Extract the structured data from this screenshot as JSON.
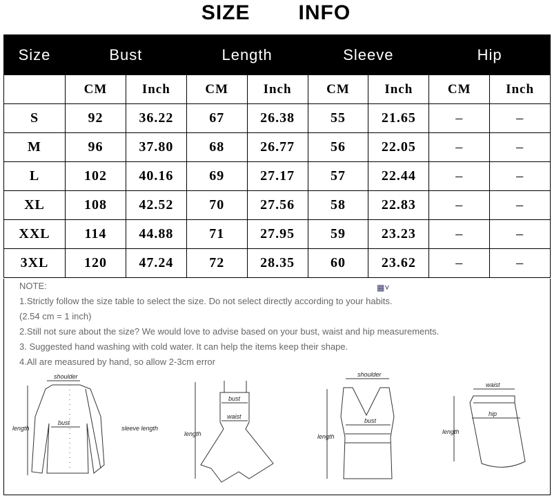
{
  "title": {
    "left": "SIZE",
    "right": "INFO"
  },
  "table": {
    "headers": [
      "Size",
      "Bust",
      "Length",
      "Sleeve",
      "Hip"
    ],
    "units": [
      "",
      "CM",
      "Inch",
      "CM",
      "Inch",
      "CM",
      "Inch",
      "CM",
      "Inch"
    ],
    "rows": [
      [
        "S",
        "92",
        "36.22",
        "67",
        "26.38",
        "55",
        "21.65",
        "–",
        "–"
      ],
      [
        "M",
        "96",
        "37.80",
        "68",
        "26.77",
        "56",
        "22.05",
        "–",
        "–"
      ],
      [
        "L",
        "102",
        "40.16",
        "69",
        "27.17",
        "57",
        "22.44",
        "–",
        "–"
      ],
      [
        "XL",
        "108",
        "42.52",
        "70",
        "27.56",
        "58",
        "22.83",
        "–",
        "–"
      ],
      [
        "XXL",
        "114",
        "44.88",
        "71",
        "27.95",
        "59",
        "23.23",
        "–",
        "–"
      ],
      [
        "3XL",
        "120",
        "47.24",
        "72",
        "28.35",
        "60",
        "23.62",
        "–",
        "–"
      ]
    ]
  },
  "notes": [
    "NOTE:",
    "1.Strictly follow the size table to select the size. Do not select directly according to your habits.",
    "(2.54 cm = 1 inch)",
    "2.Still not sure about the size? We would love to advise based on your bust, waist and hip measurements.",
    "3. Suggested hand washing with cold water. It can help the items keep their shape.",
    "4.All are measured by hand, so allow 2-3cm error"
  ],
  "figures": {
    "shirt": {
      "shoulder": "shoulder",
      "bust": "bust",
      "length": "length",
      "sleeve": "sleeve length"
    },
    "dress": {
      "bust": "bust",
      "waist": "waist",
      "length": "length"
    },
    "tank": {
      "shoulder": "shoulder",
      "bust": "bust",
      "length": "length"
    },
    "skirt": {
      "waist": "waist",
      "hip": "hip",
      "length": "length"
    }
  }
}
